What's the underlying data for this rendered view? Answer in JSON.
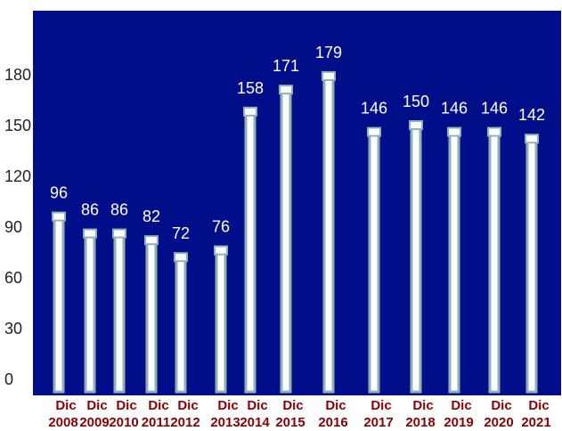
{
  "chart_data": {
    "type": "bar",
    "categories": [
      [
        "Dic",
        "2008"
      ],
      [
        "Dic",
        "2009"
      ],
      [
        "Dic",
        "2010"
      ],
      [
        "Dic",
        "2011"
      ],
      [
        "Dic",
        "2012"
      ],
      [
        "Dic",
        "2013"
      ],
      [
        "Dic",
        "2014"
      ],
      [
        "Dic",
        "2015"
      ],
      [
        "Dic",
        "2016"
      ],
      [
        "Dic",
        "2017"
      ],
      [
        "Dic",
        "2018"
      ],
      [
        "Dic",
        "2019"
      ],
      [
        "Dic",
        "2020"
      ],
      [
        "Dic",
        "2021"
      ]
    ],
    "values": [
      96,
      86,
      86,
      82,
      72,
      76,
      158,
      171,
      179,
      146,
      150,
      146,
      146,
      142
    ],
    "yticks": [
      "0",
      "30",
      "60",
      "90",
      "120",
      "150",
      "180"
    ],
    "ylim": [
      0,
      210
    ],
    "grid": false,
    "legend": "none",
    "colors": {
      "plot_background": "#000e8a",
      "bar_fill": "#ffffff",
      "bar_edge": "#8fb3b3",
      "data_label": "#ffffff",
      "category_label": "#8b0000",
      "tick_label": "#222222"
    }
  }
}
